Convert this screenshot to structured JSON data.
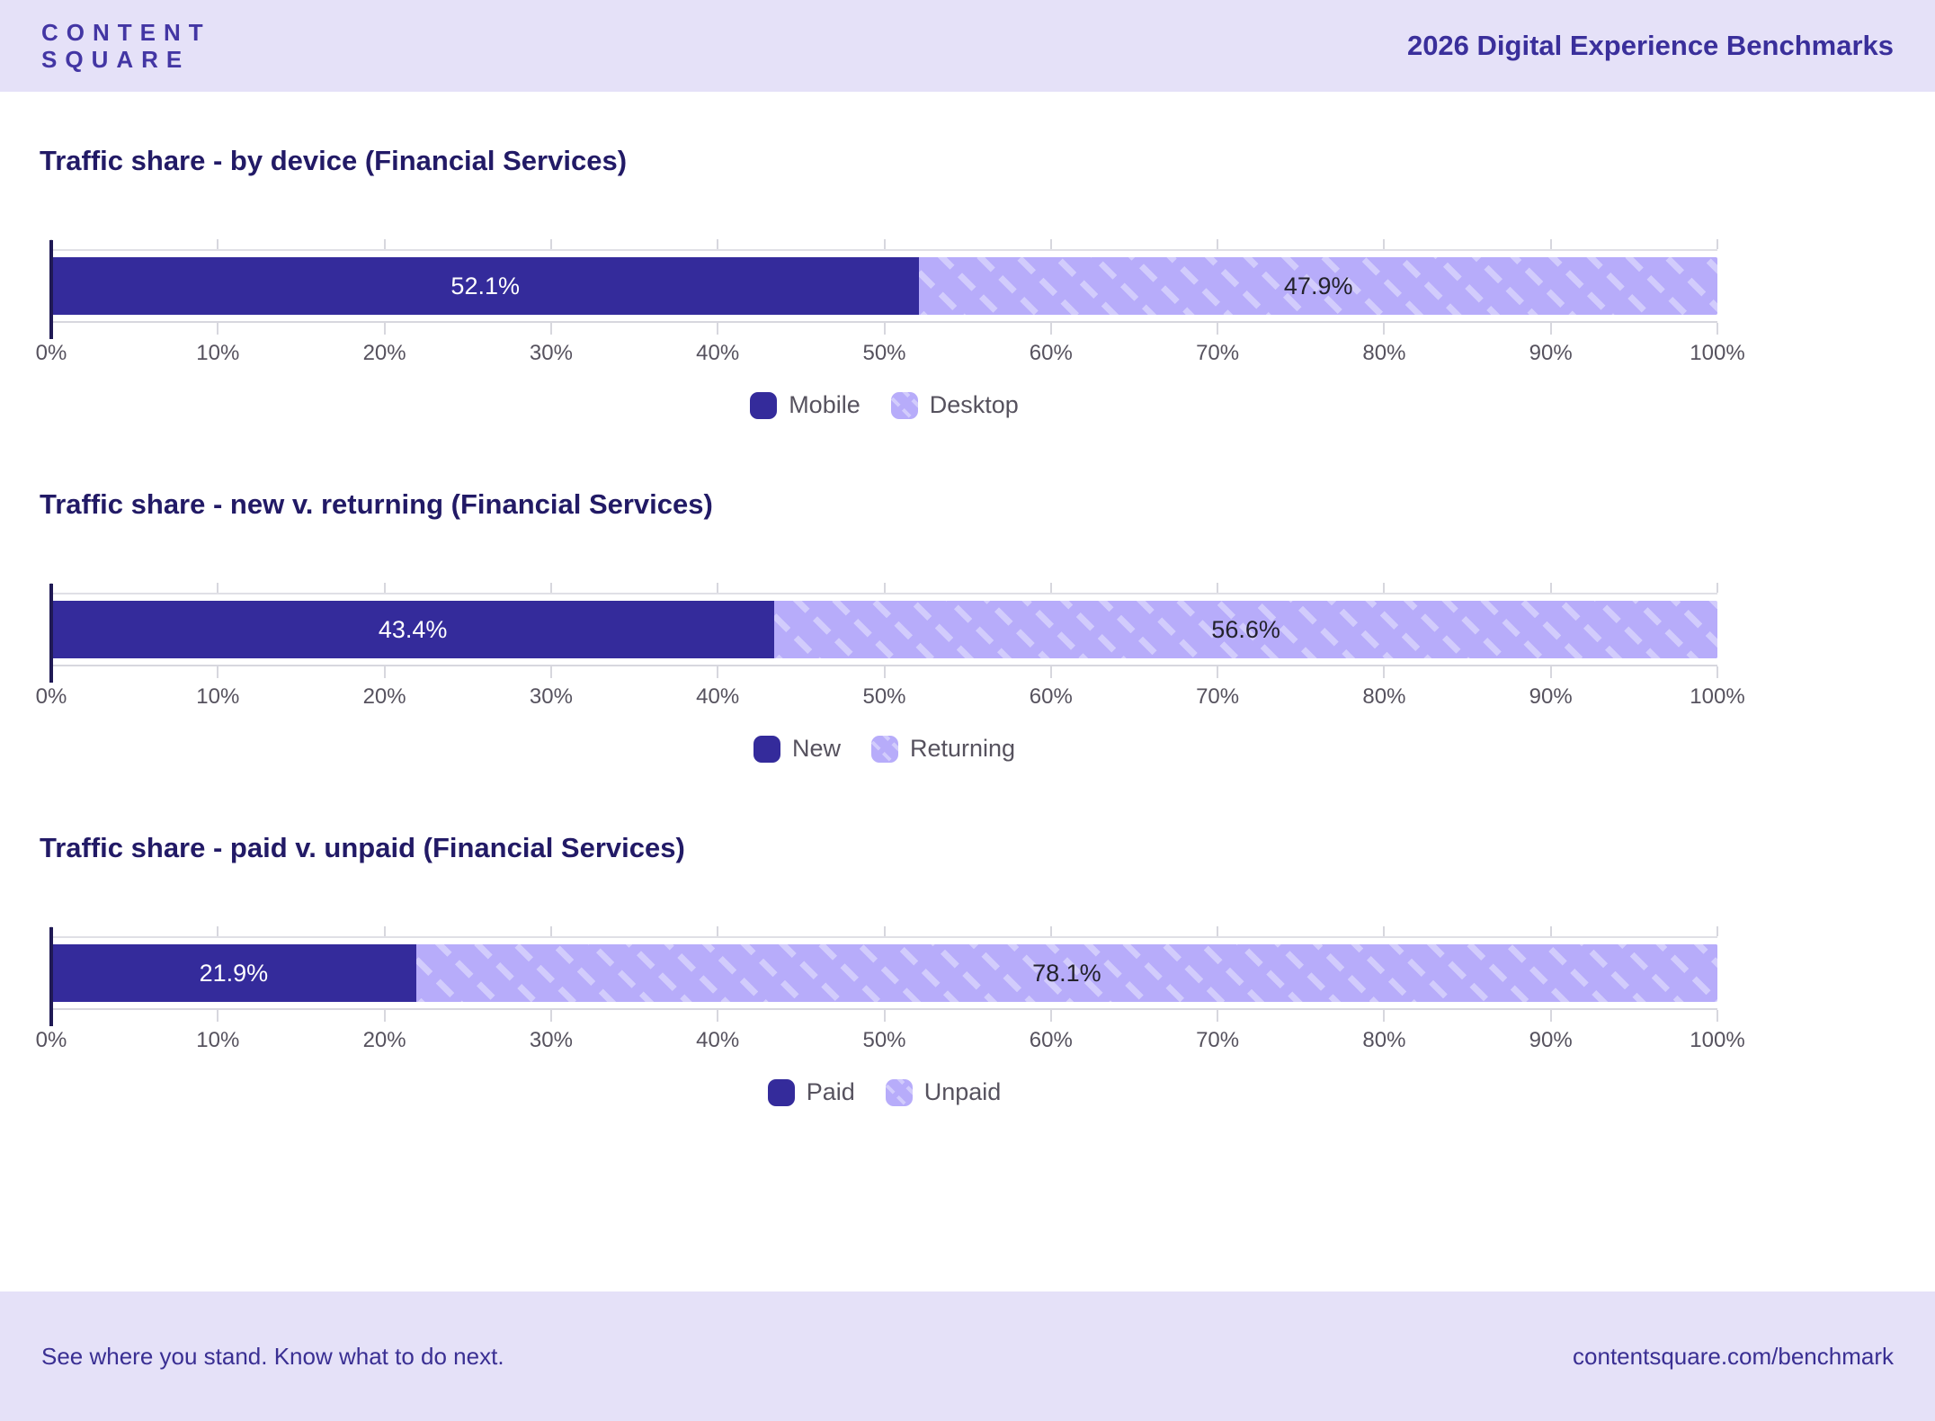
{
  "header": {
    "logo_line1": "CONTENT",
    "logo_line2": "SQUARE",
    "title": "2026 Digital Experience Benchmarks"
  },
  "colors": {
    "band_background": "#e5e1f8",
    "brand_indigo": "#3a2f9b",
    "chart_title": "#221a66",
    "bar_dark": "#342b9b",
    "bar_light": "#b7acfa",
    "axis_text": "#56525e",
    "axis_line": "#d7d7de",
    "y_axis_line": "#201a55"
  },
  "chart_data": [
    {
      "type": "bar",
      "orientation": "horizontal",
      "stacked": true,
      "title": "Traffic share - by device (Financial Services)",
      "categories": [
        "Traffic share"
      ],
      "series": [
        {
          "name": "Mobile",
          "values": [
            52.1
          ],
          "label": "52.1%",
          "color": "#342b9b",
          "label_color": "#ffffff",
          "pattern": false
        },
        {
          "name": "Desktop",
          "values": [
            47.9
          ],
          "label": "47.9%",
          "color": "#b7acfa",
          "label_color": "#23222c",
          "pattern": true
        }
      ],
      "xlim": [
        0,
        100
      ],
      "x_ticks": [
        "0%",
        "10%",
        "20%",
        "30%",
        "40%",
        "50%",
        "60%",
        "70%",
        "80%",
        "90%",
        "100%"
      ],
      "grid": false,
      "legend_position": "bottom"
    },
    {
      "type": "bar",
      "orientation": "horizontal",
      "stacked": true,
      "title": "Traffic share - new v. returning (Financial Services)",
      "categories": [
        "Traffic share"
      ],
      "series": [
        {
          "name": "New",
          "values": [
            43.4
          ],
          "label": "43.4%",
          "color": "#342b9b",
          "label_color": "#ffffff",
          "pattern": false
        },
        {
          "name": "Returning",
          "values": [
            56.6
          ],
          "label": "56.6%",
          "color": "#b7acfa",
          "label_color": "#23222c",
          "pattern": true
        }
      ],
      "xlim": [
        0,
        100
      ],
      "x_ticks": [
        "0%",
        "10%",
        "20%",
        "30%",
        "40%",
        "50%",
        "60%",
        "70%",
        "80%",
        "90%",
        "100%"
      ],
      "grid": false,
      "legend_position": "bottom"
    },
    {
      "type": "bar",
      "orientation": "horizontal",
      "stacked": true,
      "title": "Traffic share - paid v. unpaid (Financial Services)",
      "categories": [
        "Traffic share"
      ],
      "series": [
        {
          "name": "Paid",
          "values": [
            21.9
          ],
          "label": "21.9%",
          "color": "#342b9b",
          "label_color": "#ffffff",
          "pattern": false
        },
        {
          "name": "Unpaid",
          "values": [
            78.1
          ],
          "label": "78.1%",
          "color": "#b7acfa",
          "label_color": "#23222c",
          "pattern": true
        }
      ],
      "xlim": [
        0,
        100
      ],
      "x_ticks": [
        "0%",
        "10%",
        "20%",
        "30%",
        "40%",
        "50%",
        "60%",
        "70%",
        "80%",
        "90%",
        "100%"
      ],
      "grid": false,
      "legend_position": "bottom"
    }
  ],
  "footer": {
    "left_text": "See where you stand. Know what to do next.",
    "right_text": "contentsquare.com/benchmark"
  }
}
